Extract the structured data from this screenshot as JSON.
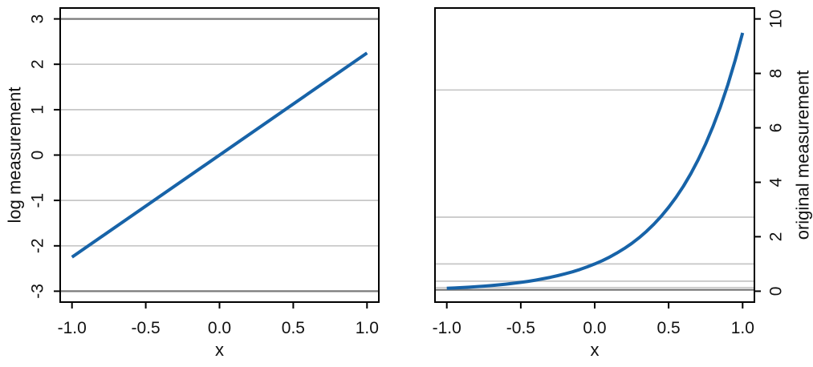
{
  "figure": {
    "background": "#ffffff",
    "axis_color": "#000000",
    "tick_label_color": "#111111"
  },
  "chart_data": [
    {
      "panel": "log-measurement",
      "type": "line",
      "title": "",
      "xlabel": "x",
      "ylabel": "log measurement",
      "yaxis_side": "left",
      "xlim": [
        -1.08,
        1.08
      ],
      "ylim": [
        -3.24,
        3.24
      ],
      "grid_on": true,
      "legend": null,
      "x_tick_values": [
        -1.0,
        -0.5,
        0.0,
        0.5,
        1.0
      ],
      "x_tick_labels": [
        "-1.0",
        "-0.5",
        "0.0",
        "0.5",
        "1.0"
      ],
      "y_tick_values": [
        -3,
        -2,
        -1,
        0,
        1,
        2,
        3
      ],
      "y_tick_labels": [
        "-3",
        "-2",
        "-1",
        "0",
        "1",
        "2",
        "3"
      ],
      "grid": {
        "color": "#c6c6c6",
        "values": [
          -2,
          -1,
          0,
          1,
          2
        ]
      },
      "reference_lines": {
        "color": "#7a7a7a",
        "values": [
          -3,
          3
        ]
      },
      "series": [
        {
          "name": "log measurement",
          "color": "#1763a8",
          "width": 4,
          "x": [
            -1,
            1
          ],
          "y": [
            -2.25,
            2.25
          ]
        }
      ]
    },
    {
      "panel": "original-measurement",
      "type": "line",
      "title": "",
      "xlabel": "x",
      "ylabel": "original measurement",
      "yaxis_side": "right",
      "xlim": [
        -1.08,
        1.08
      ],
      "ylim": [
        -0.4,
        10.4
      ],
      "grid_on": true,
      "legend": null,
      "x_tick_values": [
        -1.0,
        -0.5,
        0.0,
        0.5,
        1.0
      ],
      "x_tick_labels": [
        "-1.0",
        "-0.5",
        "0.0",
        "0.5",
        "1.0"
      ],
      "y_tick_values": [
        0,
        2,
        4,
        6,
        8,
        10
      ],
      "y_tick_labels": [
        "0",
        "2",
        "4",
        "6",
        "8",
        "10"
      ],
      "grid": {
        "color": "#c6c6c6",
        "values": [
          0.1353,
          0.3679,
          1.0,
          2.7183,
          7.3891
        ]
      },
      "reference_lines": {
        "color": "#757575",
        "values": [
          0.0498
        ]
      },
      "series": [
        {
          "name": "original measurement",
          "color": "#1763a8",
          "width": 4,
          "x": [
            -1.0,
            -0.95,
            -0.9,
            -0.85,
            -0.8,
            -0.75,
            -0.7,
            -0.65,
            -0.6,
            -0.55,
            -0.5,
            -0.45,
            -0.4,
            -0.35,
            -0.3,
            -0.25,
            -0.2,
            -0.15,
            -0.1,
            -0.05,
            0.0,
            0.05,
            0.1,
            0.15,
            0.2,
            0.25,
            0.3,
            0.35,
            0.4,
            0.45,
            0.5,
            0.55,
            0.6,
            0.65,
            0.7,
            0.75,
            0.8,
            0.85,
            0.9,
            0.95,
            1.0
          ],
          "y": [
            0.1054,
            0.118,
            0.132,
            0.1477,
            0.1653,
            0.185,
            0.207,
            0.2316,
            0.2592,
            0.2901,
            0.3247,
            0.3633,
            0.4066,
            0.455,
            0.5092,
            0.5698,
            0.6376,
            0.7135,
            0.7985,
            0.8936,
            1.0,
            1.1191,
            1.2523,
            1.4014,
            1.5683,
            1.7551,
            1.964,
            2.1979,
            2.4596,
            2.7525,
            3.0802,
            3.4469,
            3.8574,
            4.3167,
            4.8308,
            5.406,
            6.0496,
            6.77,
            7.5762,
            8.4782,
            9.4877
          ]
        }
      ]
    }
  ]
}
